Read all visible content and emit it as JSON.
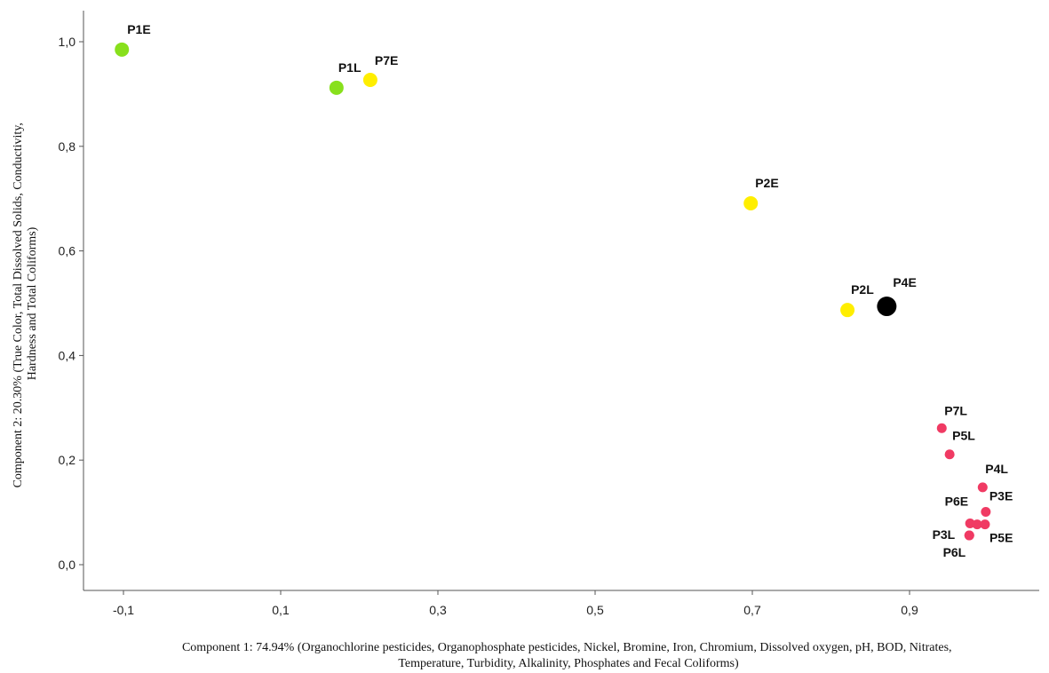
{
  "chart_data": {
    "type": "scatter",
    "title": "",
    "xlabel_lines": [
      "Component 1: 74.94% (Organochlorine pesticides, Organophosphate pesticides, Nickel, Bromine, Iron, Chromium, Dissolved oxygen, pH, BOD, Nitrates,",
      "Temperature, Turbidity, Alkalinity, Phosphates and Fecal Coliforms)"
    ],
    "ylabel_lines": [
      "Component 2: 20.30% (True Color, Total Dissolved Solids, Conductivity,",
      "Hardness and Total Coliforms)"
    ],
    "xlim": [
      -0.17,
      1.07
    ],
    "ylim": [
      -0.05,
      1.05
    ],
    "x_ticks": [
      -0.1,
      0.1,
      0.3,
      0.5,
      0.7,
      0.9
    ],
    "x_tick_labels": [
      "-0,1",
      "0,1",
      "0,3",
      "0,5",
      "0,7",
      "0,9"
    ],
    "y_ticks": [
      0.0,
      0.2,
      0.4,
      0.6,
      0.8,
      1.0
    ],
    "y_tick_labels": [
      "0,0",
      "0,2",
      "0,4",
      "0,6",
      "0,8",
      "1,0"
    ],
    "grid": false,
    "colors": {
      "green": "#88e01c",
      "yellow": "#ffee00",
      "black": "#000000",
      "red": "#f03a63"
    },
    "points": [
      {
        "label": "P1E",
        "x": -0.102,
        "y": 0.985,
        "color": "green"
      },
      {
        "label": "P1L",
        "x": 0.171,
        "y": 0.912,
        "color": "green"
      },
      {
        "label": "P7E",
        "x": 0.214,
        "y": 0.927,
        "color": "yellow"
      },
      {
        "label": "P2E",
        "x": 0.698,
        "y": 0.691,
        "color": "yellow"
      },
      {
        "label": "P2L",
        "x": 0.821,
        "y": 0.487,
        "color": "yellow"
      },
      {
        "label": "P4E",
        "x": 0.871,
        "y": 0.494,
        "color": "black"
      },
      {
        "label": "P7L",
        "x": 0.941,
        "y": 0.261,
        "color": "red"
      },
      {
        "label": "P5L",
        "x": 0.951,
        "y": 0.211,
        "color": "red"
      },
      {
        "label": "P4L",
        "x": 0.993,
        "y": 0.148,
        "color": "red"
      },
      {
        "label": "P3E",
        "x": 0.997,
        "y": 0.101,
        "color": "red"
      },
      {
        "label": "P6E",
        "x": 0.977,
        "y": 0.079,
        "color": "red"
      },
      {
        "label": "",
        "x": 0.986,
        "y": 0.077,
        "color": "red"
      },
      {
        "label": "P5E",
        "x": 0.996,
        "y": 0.077,
        "color": "red"
      },
      {
        "label": "P3L",
        "x": 0.976,
        "y": 0.056,
        "color": "red"
      },
      {
        "label": "P6L",
        "x": 0.976,
        "y": 0.056,
        "color": "red"
      }
    ]
  }
}
